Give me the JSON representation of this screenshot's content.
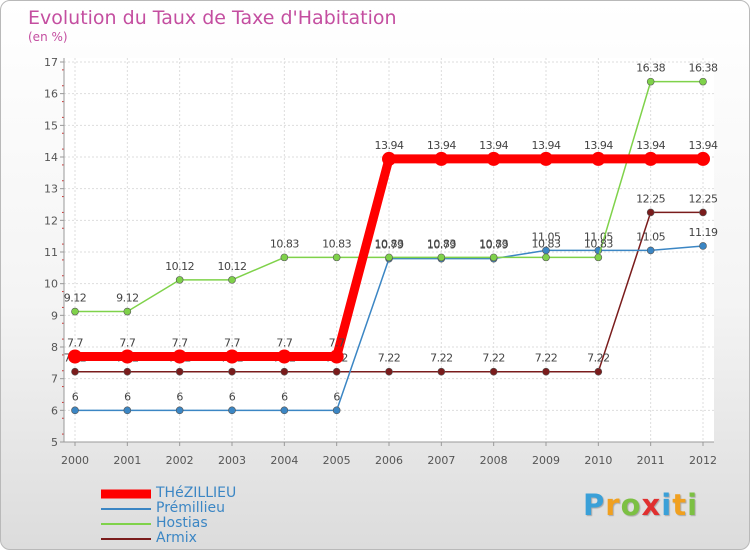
{
  "title": "Evolution du Taux de Taxe d'Habitation",
  "unit": "(en %)",
  "logo": {
    "letters": [
      "P",
      "r",
      "o",
      "x",
      "i",
      "t",
      "i"
    ],
    "colors": [
      "#3aa0d8",
      "#f0a020",
      "#7cc043",
      "#e03030",
      "#3aa0d8",
      "#f0a020",
      "#7cc043"
    ]
  },
  "chart_data": {
    "type": "line",
    "x": [
      "2000",
      "2001",
      "2002",
      "2003",
      "2004",
      "2005",
      "2006",
      "2007",
      "2008",
      "2009",
      "2010",
      "2011",
      "2012"
    ],
    "ylim": [
      5,
      17
    ],
    "yticks": [
      "5",
      "6",
      "7",
      "8",
      "9",
      "10",
      "11",
      "12",
      "13",
      "14",
      "15",
      "16",
      "17"
    ],
    "grid": true,
    "legend_position": "bottom-left",
    "series": [
      {
        "name": "Armix",
        "color": "#7a1c1c",
        "label_color": "#444444",
        "values": [
          7.22,
          7.22,
          7.22,
          7.22,
          7.22,
          7.22,
          7.22,
          7.22,
          7.22,
          7.22,
          7.22,
          12.25,
          12.25
        ],
        "labels": [
          "7.22",
          "7.22",
          "7.22",
          "7.22",
          "7.22",
          "7.22",
          "7.22",
          "7.22",
          "7.22",
          "7.22",
          "7.22",
          "12.25",
          "12.25"
        ]
      },
      {
        "name": "Prémillieu",
        "color": "#3b86c4",
        "label_color": "#444444",
        "values": [
          6,
          6,
          6,
          6,
          6,
          6,
          10.79,
          10.79,
          10.79,
          11.05,
          11.05,
          11.05,
          11.19
        ],
        "labels": [
          "6",
          "6",
          "6",
          "6",
          "6",
          "6",
          "10.79",
          "10.79",
          "10.79",
          "11.05",
          "11.05",
          "11.05",
          "11.19"
        ]
      },
      {
        "name": "Hostias",
        "color": "#7fd24a",
        "label_color": "#444444",
        "values": [
          9.12,
          9.12,
          10.12,
          10.12,
          10.83,
          10.83,
          10.83,
          10.83,
          10.83,
          10.83,
          10.83,
          16.38,
          16.38
        ],
        "labels": [
          "9.12",
          "9.12",
          "10.12",
          "10.12",
          "10.83",
          "10.83",
          "10.83",
          "10.83",
          "10.83",
          "10.83",
          "10.83",
          "16.38",
          "16.38"
        ]
      },
      {
        "name": "THéZILLIEU",
        "color": "#ff0000",
        "label_color": "#444444",
        "values": [
          7.7,
          7.7,
          7.7,
          7.7,
          7.7,
          7.7,
          13.94,
          13.94,
          13.94,
          13.94,
          13.94,
          13.94,
          13.94
        ],
        "labels": [
          "7.7",
          "7.7",
          "7.7",
          "7.7",
          "7.7",
          "7.7",
          "13.94",
          "13.94",
          "13.94",
          "13.94",
          "13.94",
          "13.94",
          "13.94"
        ]
      }
    ],
    "legend": [
      {
        "name": "THéZILLIEU",
        "color": "#ff0000",
        "text_color": "#3b86c4"
      },
      {
        "name": "Prémillieu",
        "color": "#3b86c4",
        "text_color": "#3b86c4"
      },
      {
        "name": "Hostias",
        "color": "#7fd24a",
        "text_color": "#3b86c4"
      },
      {
        "name": "Armix",
        "color": "#7a1c1c",
        "text_color": "#3b86c4"
      }
    ]
  }
}
